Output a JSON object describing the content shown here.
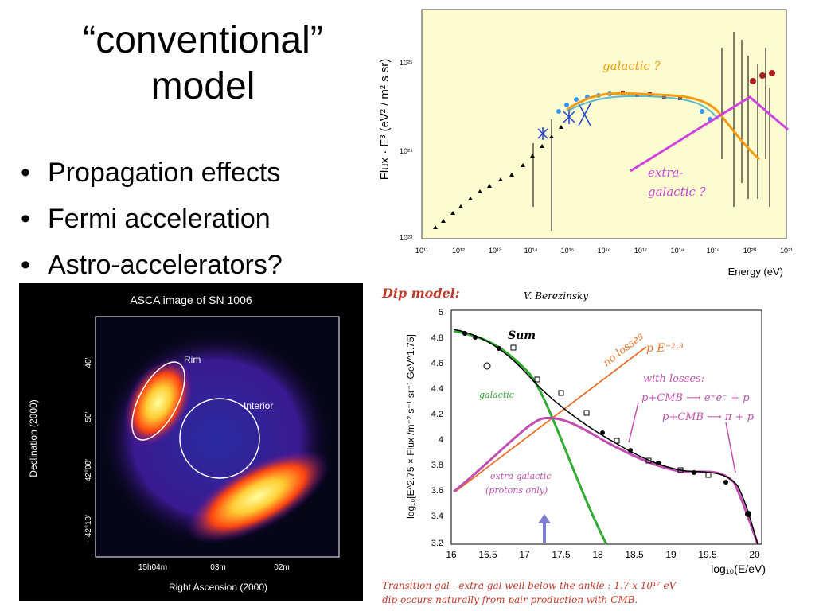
{
  "slide": {
    "title_line1": "“conventional”",
    "title_line2": "model",
    "bullets": [
      "Propagation effects",
      "Fermi acceleration",
      "Astro-accelerators?"
    ]
  },
  "spectrum_plot": {
    "ylabel": "Flux · E³ (eV² / m² s sr)",
    "xlabel": "Energy (eV)",
    "y_ticks": [
      "10²⁵",
      "10²⁴",
      "10²³"
    ],
    "x_ticks": [
      "10¹¹",
      "10¹²",
      "10¹³",
      "10¹⁴",
      "10¹⁵",
      "10¹⁶",
      "10¹⁷",
      "10¹⁸",
      "10¹⁹",
      "10²⁰",
      "10²¹"
    ],
    "label_galactic": "galactic ?",
    "label_extra_1": "extra-",
    "label_extra_2": "galactic ?",
    "colors": {
      "galactic": "#f39c12",
      "extragalactic": "#cc44dd",
      "background": "#fdfbd0"
    }
  },
  "asca_image": {
    "title": "ASCA image of SN 1006",
    "label_rim": "Rim",
    "label_interior": "Interior",
    "y_axis_title": "Declination (2000)",
    "x_axis_title": "Right Ascension (2000)",
    "y_ticks": [
      "40′",
      "50′",
      "−42°00′",
      "−42°10′"
    ],
    "x_ticks": [
      "15h04m",
      "03m",
      "02m"
    ]
  },
  "dip_plot": {
    "header": "Dip model:",
    "author": "V. Berezinsky",
    "ylabel": "log₁₀[E^2.75 × Flux /m⁻² s⁻¹ sr⁻¹ GeV^1.75]",
    "xlabel": "log₁₀(E/eV)",
    "y_ticks": [
      "5",
      "4.8",
      "4.6",
      "4.4",
      "4.2",
      "4",
      "3.8",
      "3.6",
      "3.4",
      "3.2"
    ],
    "x_ticks": [
      "16",
      "16.5",
      "17",
      "17.5",
      "18",
      "18.5",
      "19",
      "19.5",
      "20"
    ],
    "label_sum": "Sum",
    "label_no_losses": "no losses",
    "label_power": "p  E⁻²·³",
    "label_with_losses": "with losses:",
    "label_pcmb1": "p+CMB ⟶ e⁺e⁻ + p",
    "label_pcmb2": "p+CMB ⟶  π + p",
    "label_galactic": "galactic",
    "label_extra_1": "extra galactic",
    "label_extra_2": "(protons only)",
    "colors": {
      "sum": "#000000",
      "no_losses": "#e8702a",
      "galactic": "#33aa33",
      "extra": "#c04fb0",
      "arrow": "#7f7fcf"
    }
  },
  "caption": {
    "line1": "Transition   gal - extra gal  well below the ankle :    1.7 x 10¹⁷ eV",
    "line2": "dip occurs naturally from pair production with CMB."
  }
}
